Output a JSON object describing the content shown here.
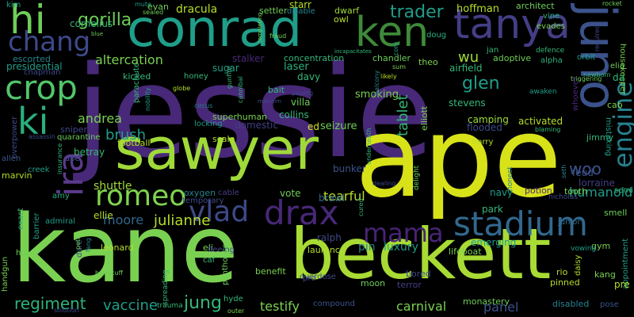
{
  "colors": {
    "background": "#000000",
    "palette": [
      "#440154",
      "#482878",
      "#3e4989",
      "#31688e",
      "#26828e",
      "#1f9e89",
      "#35b779",
      "#6ece58",
      "#b5de2b",
      "#fde725"
    ]
  },
  "words": [
    {
      "text": "jessie",
      "color": "#482878"
    },
    {
      "text": "ape",
      "color": "#d8e219"
    },
    {
      "text": "kane",
      "color": "#7ad151"
    },
    {
      "text": "beckett",
      "color": "#a8db34"
    },
    {
      "text": "sawyer",
      "color": "#a0da39"
    },
    {
      "text": "conrad",
      "color": "#1f9e89"
    },
    {
      "text": "juno",
      "color": "#3b528b"
    },
    {
      "text": "tanya",
      "color": "#433e85"
    },
    {
      "text": "ken",
      "color": "#3e8a3a"
    },
    {
      "text": "hi",
      "color": "#6ece58"
    },
    {
      "text": "chang",
      "color": "#3e4989"
    },
    {
      "text": "crop",
      "color": "#52c569"
    },
    {
      "text": "ki",
      "color": "#2ab07f"
    },
    {
      "text": "ira",
      "color": "#5b3a8c"
    },
    {
      "text": "romeo",
      "color": "#7fd34e"
    },
    {
      "text": "drax",
      "color": "#482878"
    },
    {
      "text": "vlad",
      "color": "#3e4989"
    },
    {
      "text": "mama",
      "color": "#482475"
    },
    {
      "text": "stadium",
      "color": "#31688e"
    },
    {
      "text": "engine",
      "color": "#26828e"
    },
    {
      "text": "gorilla",
      "color": "#6ece58"
    },
    {
      "text": "trader",
      "color": "#1f9e89"
    },
    {
      "text": "wu",
      "color": "#a0da39"
    },
    {
      "text": "glen",
      "color": "#1f9e89"
    },
    {
      "text": "regiment",
      "color": "#2db27d"
    },
    {
      "text": "jung",
      "color": "#35b779"
    },
    {
      "text": "woo",
      "color": "#3b528b"
    },
    {
      "text": "julianne",
      "color": "#b5de2b"
    },
    {
      "text": "moore",
      "color": "#31688e"
    },
    {
      "text": "tablet",
      "color": "#35b779"
    },
    {
      "text": "brush",
      "color": "#1f9e89"
    },
    {
      "text": "andrea",
      "color": "#7ad151"
    },
    {
      "text": "tearful",
      "color": "#b5de2b"
    },
    {
      "text": "vaccine",
      "color": "#1f9e89"
    },
    {
      "text": "humanoid",
      "color": "#1f9e89"
    },
    {
      "text": "testify",
      "color": "#7ad151"
    },
    {
      "text": "carnival",
      "color": "#7ad151"
    },
    {
      "text": "panel",
      "color": "#3b528b"
    },
    {
      "text": "luxury",
      "color": "#1f9e89"
    },
    {
      "text": "pin",
      "color": "#26828e"
    },
    {
      "text": "cornelius",
      "color": "#35b779"
    },
    {
      "text": "hoffman",
      "color": "#b5de2b"
    },
    {
      "text": "dracula",
      "color": "#b5de2b"
    },
    {
      "text": "stalker",
      "color": "#482878"
    },
    {
      "text": "altercation",
      "color": "#7ad151"
    },
    {
      "text": "shuttle",
      "color": "#a0da39"
    },
    {
      "text": "ellie",
      "color": "#b5de2b"
    },
    {
      "text": "amy",
      "color": "#2ab07f"
    },
    {
      "text": "vote",
      "color": "#6ece58"
    },
    {
      "text": "ralph",
      "color": "#3e4989"
    },
    {
      "text": "brawl",
      "color": "#31688e"
    },
    {
      "text": "bunker",
      "color": "#3b528b"
    },
    {
      "text": "navy",
      "color": "#1f9e89"
    },
    {
      "text": "park",
      "color": "#35b779"
    },
    {
      "text": "feud",
      "color": "#3b528b"
    },
    {
      "text": "lorraine",
      "color": "#433e85"
    },
    {
      "text": "laser",
      "color": "#2db27d"
    },
    {
      "text": "smoking",
      "color": "#7ad151"
    },
    {
      "text": "collins",
      "color": "#35b779"
    },
    {
      "text": "seizure",
      "color": "#6ece58"
    },
    {
      "text": "ed",
      "color": "#d8e219"
    },
    {
      "text": "stevens",
      "color": "#35b779"
    },
    {
      "text": "camping",
      "color": "#a0da39"
    },
    {
      "text": "flooded",
      "color": "#3e4989"
    },
    {
      "text": "activated",
      "color": "#b5de2b"
    },
    {
      "text": "elliott",
      "color": "#7ad151"
    },
    {
      "text": "airfield",
      "color": "#35b779"
    },
    {
      "text": "adoptive",
      "color": "#6ece58"
    },
    {
      "text": "alpha",
      "color": "#2ab07f"
    },
    {
      "text": "jan",
      "color": "#35b779"
    },
    {
      "text": "theo",
      "color": "#7ad151"
    },
    {
      "text": "chandler",
      "color": "#6ece58"
    },
    {
      "text": "concentration",
      "color": "#35b779"
    },
    {
      "text": "honey",
      "color": "#35b779"
    },
    {
      "text": "sugar",
      "color": "#1f9e89"
    },
    {
      "text": "davy",
      "color": "#35b779"
    },
    {
      "text": "villa",
      "color": "#6ece58"
    },
    {
      "text": "superhuman",
      "color": "#7ad151"
    },
    {
      "text": "locking",
      "color": "#1f9e89"
    },
    {
      "text": "kicked",
      "color": "#35b779"
    },
    {
      "text": "chapman",
      "color": "#3e4989"
    },
    {
      "text": "presidential",
      "color": "#1f9e89"
    },
    {
      "text": "escorted",
      "color": "#26828e"
    },
    {
      "text": "mute",
      "color": "#1f9e89"
    },
    {
      "text": "kim",
      "color": "#1f9e89"
    },
    {
      "text": "evan",
      "color": "#6ece58"
    },
    {
      "text": "sealed",
      "color": "#6ece58"
    },
    {
      "text": "starr",
      "color": "#b5de2b"
    },
    {
      "text": "settler",
      "color": "#6ece58"
    },
    {
      "text": "disable",
      "color": "#26828e"
    },
    {
      "text": "dwarf",
      "color": "#a0da39"
    },
    {
      "text": "owl",
      "color": "#b5de2b"
    },
    {
      "text": "doug",
      "color": "#2ab07f"
    },
    {
      "text": "architect",
      "color": "#6ece58"
    },
    {
      "text": "vine",
      "color": "#2ab07f"
    },
    {
      "text": "evades",
      "color": "#7ad151"
    },
    {
      "text": "rocket",
      "color": "#6ece58"
    },
    {
      "text": "defence",
      "color": "#35b779"
    },
    {
      "text": "orbit",
      "color": "#1f9e89"
    },
    {
      "text": "housekeeper",
      "color": "#7ad151"
    },
    {
      "text": "elia",
      "color": "#6ece58"
    },
    {
      "text": "da",
      "color": "#35b779"
    },
    {
      "text": "cab",
      "color": "#7ad151"
    },
    {
      "text": "jimmy",
      "color": "#35b779"
    },
    {
      "text": "mistaking",
      "color": "#1f9e89"
    },
    {
      "text": "harry",
      "color": "#b5de2b"
    },
    {
      "text": "potion",
      "color": "#482878"
    },
    {
      "text": "tooth",
      "color": "#7ad151"
    },
    {
      "text": "semi",
      "color": "#35b779"
    },
    {
      "text": "smell",
      "color": "#6ece58"
    },
    {
      "text": "junior",
      "color": "#31688e"
    },
    {
      "text": "gym",
      "color": "#7ad151"
    },
    {
      "text": "rio",
      "color": "#b5de2b"
    },
    {
      "text": "kang",
      "color": "#7ad151"
    },
    {
      "text": "pinned",
      "color": "#b5de2b"
    },
    {
      "text": "disabled",
      "color": "#26828e"
    },
    {
      "text": "pose",
      "color": "#3b528b"
    },
    {
      "text": "monastery",
      "color": "#6ece58"
    },
    {
      "text": "lifeboat",
      "color": "#7ad151"
    },
    {
      "text": "emerging",
      "color": "#1f9e89"
    },
    {
      "text": "moon",
      "color": "#6ece58"
    },
    {
      "text": "bored",
      "color": "#3e4989"
    },
    {
      "text": "terror",
      "color": "#433e85"
    },
    {
      "text": "compound",
      "color": "#3b528b"
    },
    {
      "text": "laurence",
      "color": "#b5de2b"
    },
    {
      "text": "benefit",
      "color": "#7ad151"
    },
    {
      "text": "eli",
      "color": "#7ad151"
    },
    {
      "text": "caf",
      "color": "#35b779"
    },
    {
      "text": "leonard",
      "color": "#b5de2b"
    },
    {
      "text": "admiral",
      "color": "#1f9e89"
    },
    {
      "text": "barrier",
      "color": "#1f9e89"
    },
    {
      "text": "handgun",
      "color": "#7ad151"
    },
    {
      "text": "hat",
      "color": "#6ece58"
    },
    {
      "text": "exact",
      "color": "#35b779"
    },
    {
      "text": "marvin",
      "color": "#b5de2b"
    },
    {
      "text": "allen",
      "color": "#3b528b"
    },
    {
      "text": "creek",
      "color": "#1f9e89"
    },
    {
      "text": "overpower",
      "color": "#3e4989"
    },
    {
      "text": "sniper",
      "color": "#3e4989"
    },
    {
      "text": "quarantine",
      "color": "#6ece58"
    },
    {
      "text": "assassin",
      "color": "#3e4989"
    },
    {
      "text": "football",
      "color": "#b5de2b"
    },
    {
      "text": "betray",
      "color": "#35b779"
    },
    {
      "text": "abe",
      "color": "#3e4989"
    },
    {
      "text": "oxygen",
      "color": "#26828e"
    },
    {
      "text": "cable",
      "color": "#433e85"
    },
    {
      "text": "temporary",
      "color": "#3e4989"
    },
    {
      "text": "fleeing",
      "color": "#3e4989"
    },
    {
      "text": "hyde",
      "color": "#35b779"
    },
    {
      "text": "outer",
      "color": "#7ad151"
    },
    {
      "text": "trauma",
      "color": "#35b779"
    },
    {
      "text": "spreading",
      "color": "#35b779"
    },
    {
      "text": "penthouse",
      "color": "#6ece58"
    },
    {
      "text": "pro",
      "color": "#3e4989"
    },
    {
      "text": "overdose",
      "color": "#3e4989"
    },
    {
      "text": "seth",
      "color": "#26828e"
    },
    {
      "text": "nicholas",
      "color": "#3e4989"
    },
    {
      "text": "appointment",
      "color": "#1f9e89"
    },
    {
      "text": "pre",
      "color": "#b5de2b"
    },
    {
      "text": "bait",
      "color": "#35b779"
    },
    {
      "text": "globe",
      "color": "#b5de2b"
    },
    {
      "text": "domestic",
      "color": "#433e85"
    },
    {
      "text": "gunfire",
      "color": "#35b779"
    },
    {
      "text": "cannibal",
      "color": "#35b779"
    },
    {
      "text": "fraud",
      "color": "#7ad151"
    },
    {
      "text": "completing",
      "color": "#6ece58"
    },
    {
      "text": "incapacitates",
      "color": "#35b779"
    },
    {
      "text": "likely",
      "color": "#b5de2b"
    },
    {
      "text": "core",
      "color": "#1f9e89"
    },
    {
      "text": "sum",
      "color": "#7ad151"
    },
    {
      "text": "triggering",
      "color": "#6ece58"
    },
    {
      "text": "blaming",
      "color": "#35b779"
    },
    {
      "text": "awaken",
      "color": "#1f9e89"
    },
    {
      "text": "whoever",
      "color": "#482878"
    },
    {
      "text": "required",
      "color": "#3e4989"
    },
    {
      "text": "newborn",
      "color": "#35b779"
    },
    {
      "text": "underneath",
      "color": "#35b779"
    },
    {
      "text": "dealing",
      "color": "#3e4989"
    },
    {
      "text": "delight",
      "color": "#6ece58"
    },
    {
      "text": "cured",
      "color": "#35b779"
    },
    {
      "text": "honest",
      "color": "#26828e"
    },
    {
      "text": "dare",
      "color": "#3b528b"
    },
    {
      "text": "fang",
      "color": "#26828e"
    },
    {
      "text": "handcuff",
      "color": "#6ece58"
    },
    {
      "text": "pete",
      "color": "#6ece58"
    },
    {
      "text": "insurance",
      "color": "#35b779"
    },
    {
      "text": "scale",
      "color": "#b5de2b"
    },
    {
      "text": "balcony",
      "color": "#26828e"
    },
    {
      "text": "daisy",
      "color": "#b5de2b"
    },
    {
      "text": "solution",
      "color": "#3e4989"
    },
    {
      "text": "vowing",
      "color": "#1f9e89"
    },
    {
      "text": "abe",
      "color": "#3e4989"
    },
    {
      "text": "blue",
      "color": "#6ece58"
    },
    {
      "text": "paying",
      "color": "#3e4989"
    },
    {
      "text": "malcolm",
      "color": "#3e4989"
    },
    {
      "text": "parachute",
      "color": "#35b779"
    },
    {
      "text": "nobility",
      "color": "#1f9e89"
    },
    {
      "text": "circus",
      "color": "#26828e"
    }
  ]
}
